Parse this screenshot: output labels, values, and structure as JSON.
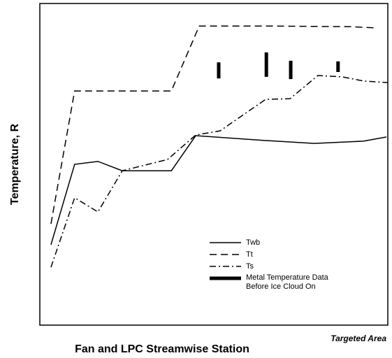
{
  "chart_data": {
    "type": "line",
    "xlabel": "Fan and LPC Streamwise Station",
    "ylabel": "Temperature, R",
    "annotation": "Targeted Area",
    "xlim": [
      0,
      100
    ],
    "ylim": [
      0,
      100
    ],
    "series": [
      {
        "name": "Twb",
        "color": "#000000",
        "style": "solid",
        "x": [
          3.2,
          10.0,
          16.7,
          23.7,
          37.8,
          44.8,
          64.9,
          78.9,
          93.0,
          99.6
        ],
        "values": [
          25.0,
          50.0,
          50.9,
          48.0,
          48.0,
          58.9,
          57.4,
          56.5,
          57.2,
          58.5
        ]
      },
      {
        "name": "Tt",
        "color": "#000000",
        "style": "dashed",
        "x": [
          3.2,
          10.0,
          37.8,
          45.8,
          64.9,
          89.0,
          97.0
        ],
        "values": [
          31.5,
          72.8,
          72.8,
          93.0,
          93.0,
          92.8,
          92.4
        ]
      },
      {
        "name": "Ts",
        "color": "#000000",
        "style": "dashdot",
        "x": [
          3.2,
          10.0,
          16.7,
          23.7,
          36.7,
          44.8,
          51.8,
          64.9,
          71.9,
          79.9,
          86.9,
          93.0,
          100
        ],
        "values": [
          18.0,
          39.6,
          35.2,
          48.0,
          51.5,
          59.1,
          60.4,
          70.2,
          70.4,
          77.6,
          77.2,
          75.9,
          75.4
        ]
      },
      {
        "name": "Metal Temperature Data Before Ice Cloud On",
        "color": "#000000",
        "style": "bar",
        "x": [
          51.4,
          65.1,
          72.1,
          85.7
        ],
        "low": [
          76.7,
          77.2,
          76.5,
          78.7
        ],
        "high": [
          81.7,
          84.8,
          82.2,
          82.0
        ]
      }
    ]
  }
}
